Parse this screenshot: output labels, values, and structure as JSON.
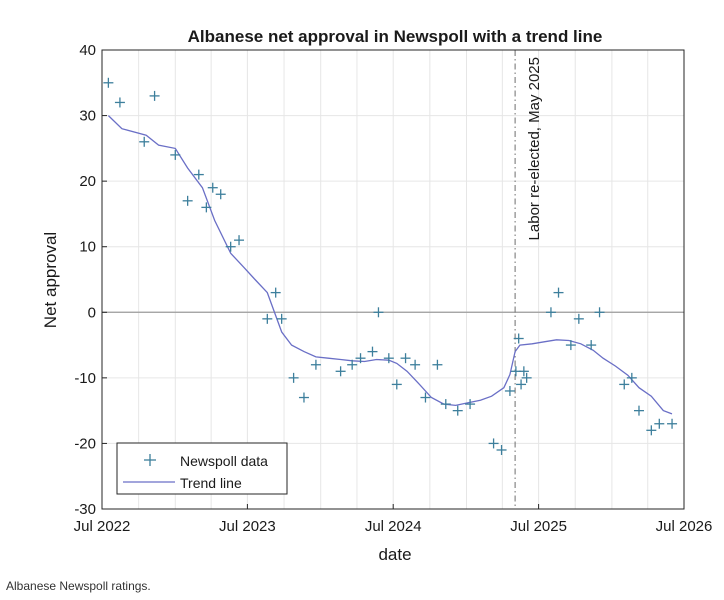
{
  "chart_data": {
    "type": "scatter",
    "title": "Albanese net approval in Newspoll with a trend line",
    "xlabel": "date",
    "ylabel": "Net approval",
    "xlim": [
      "2022-07-01",
      "2026-07-01"
    ],
    "ylim": [
      -30,
      40
    ],
    "x_ticks": [
      "Jul 2022",
      "Jul 2023",
      "Jul 2024",
      "Jul 2025",
      "Jul 2026"
    ],
    "x_tick_dates": [
      "2022-07-01",
      "2023-07-01",
      "2024-07-01",
      "2025-07-01",
      "2026-07-01"
    ],
    "y_ticks": [
      40,
      30,
      20,
      10,
      0,
      -10,
      -20,
      -30
    ],
    "grid": true,
    "legend_position": "bottom-left",
    "colors": {
      "data": "#3d7f9c",
      "trend": "#6a6fc6",
      "annotation": "#6e6e6e",
      "zero_line": "#9c9c9c"
    },
    "series": [
      {
        "name": "Newspoll data",
        "kind": "markers",
        "points": [
          [
            "2022-07-17",
            35
          ],
          [
            "2022-08-15",
            32
          ],
          [
            "2022-10-15",
            26
          ],
          [
            "2022-11-10",
            33
          ],
          [
            "2023-01-01",
            24
          ],
          [
            "2023-02-01",
            17
          ],
          [
            "2023-03-01",
            21
          ],
          [
            "2023-03-20",
            16
          ],
          [
            "2023-04-05",
            19
          ],
          [
            "2023-04-25",
            18
          ],
          [
            "2023-05-20",
            10
          ],
          [
            "2023-06-10",
            11
          ],
          [
            "2023-08-20",
            -1
          ],
          [
            "2023-09-10",
            3
          ],
          [
            "2023-09-25",
            -1
          ],
          [
            "2023-10-25",
            -10
          ],
          [
            "2023-11-20",
            -13
          ],
          [
            "2023-12-20",
            -8
          ],
          [
            "2024-02-20",
            -9
          ],
          [
            "2024-03-20",
            -8
          ],
          [
            "2024-04-10",
            -7
          ],
          [
            "2024-05-10",
            -6
          ],
          [
            "2024-05-25",
            0
          ],
          [
            "2024-06-20",
            -7
          ],
          [
            "2024-07-10",
            -11
          ],
          [
            "2024-08-01",
            -7
          ],
          [
            "2024-08-25",
            -8
          ],
          [
            "2024-09-20",
            -13
          ],
          [
            "2024-10-20",
            -8
          ],
          [
            "2024-11-10",
            -14
          ],
          [
            "2024-12-10",
            -15
          ],
          [
            "2025-01-10",
            -14
          ],
          [
            "2025-03-10",
            -20
          ],
          [
            "2025-03-30",
            -21
          ],
          [
            "2025-04-20",
            -12
          ],
          [
            "2025-05-05",
            -9
          ],
          [
            "2025-05-12",
            -4
          ],
          [
            "2025-05-18",
            -11
          ],
          [
            "2025-05-25",
            -9
          ],
          [
            "2025-06-01",
            -10
          ],
          [
            "2025-08-01",
            0
          ],
          [
            "2025-08-20",
            3
          ],
          [
            "2025-09-20",
            -5
          ],
          [
            "2025-10-10",
            -1
          ],
          [
            "2025-11-10",
            -5
          ],
          [
            "2025-12-01",
            0
          ],
          [
            "2026-02-01",
            -11
          ],
          [
            "2026-02-20",
            -10
          ],
          [
            "2026-03-10",
            -15
          ],
          [
            "2026-04-10",
            -18
          ],
          [
            "2026-04-30",
            -17
          ],
          [
            "2026-06-01",
            -17
          ]
        ]
      },
      {
        "name": "Trend line",
        "kind": "line",
        "points": [
          [
            "2022-07-17",
            30
          ],
          [
            "2022-08-20",
            28
          ],
          [
            "2022-10-20",
            27
          ],
          [
            "2022-11-20",
            25.5
          ],
          [
            "2023-01-01",
            25
          ],
          [
            "2023-02-01",
            22
          ],
          [
            "2023-03-10",
            19
          ],
          [
            "2023-04-10",
            14
          ],
          [
            "2023-05-20",
            9
          ],
          [
            "2023-06-20",
            7
          ],
          [
            "2023-07-20",
            5
          ],
          [
            "2023-08-20",
            3
          ],
          [
            "2023-09-10",
            -0.5
          ],
          [
            "2023-09-25",
            -3
          ],
          [
            "2023-10-20",
            -5
          ],
          [
            "2023-11-20",
            -6
          ],
          [
            "2023-12-20",
            -6.8
          ],
          [
            "2024-01-20",
            -7
          ],
          [
            "2024-02-20",
            -7.2
          ],
          [
            "2024-03-20",
            -7.4
          ],
          [
            "2024-04-20",
            -7.5
          ],
          [
            "2024-05-20",
            -7.2
          ],
          [
            "2024-06-20",
            -7.3
          ],
          [
            "2024-07-10",
            -7.8
          ],
          [
            "2024-08-05",
            -9
          ],
          [
            "2024-09-05",
            -11
          ],
          [
            "2024-10-05",
            -13
          ],
          [
            "2024-11-05",
            -14
          ],
          [
            "2024-12-05",
            -14.2
          ],
          [
            "2025-01-05",
            -13.8
          ],
          [
            "2025-02-05",
            -13.4
          ],
          [
            "2025-03-05",
            -12.8
          ],
          [
            "2025-04-05",
            -11.5
          ],
          [
            "2025-04-20",
            -9.5
          ],
          [
            "2025-05-03",
            -6
          ],
          [
            "2025-05-15",
            -5
          ],
          [
            "2025-06-15",
            -4.8
          ],
          [
            "2025-07-15",
            -4.5
          ],
          [
            "2025-08-15",
            -4.2
          ],
          [
            "2025-09-15",
            -4.3
          ],
          [
            "2025-10-15",
            -4.8
          ],
          [
            "2025-11-15",
            -5.8
          ],
          [
            "2025-12-10",
            -7
          ],
          [
            "2026-01-10",
            -8.2
          ],
          [
            "2026-02-10",
            -9.6
          ],
          [
            "2026-03-10",
            -11.5
          ],
          [
            "2026-04-10",
            -12.8
          ],
          [
            "2026-05-10",
            -15
          ],
          [
            "2026-06-01",
            -15.5
          ]
        ]
      }
    ],
    "annotation": {
      "date": "2025-05-03",
      "label": "Labor re-elected, May 2025"
    }
  },
  "caption": "Albanese Newspoll ratings."
}
